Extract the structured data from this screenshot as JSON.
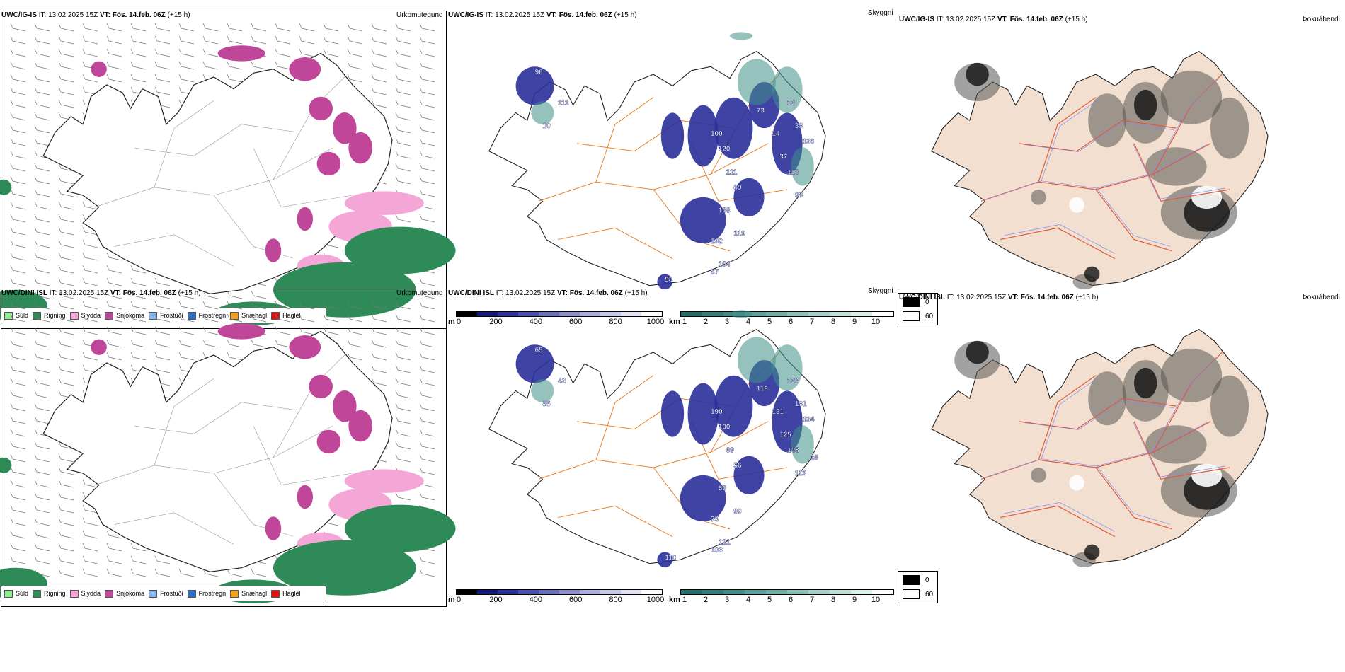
{
  "rows": [
    {
      "model": "UWC/IG-IS",
      "it_label": "IT: 13.02.2025 15Z",
      "vt_label": "VT: Fös. 14.feb. 06Z",
      "lead": "(+15 h)",
      "cloud_labels": [
        "96",
        "10",
        "100",
        "120",
        "111",
        "89",
        "73",
        "14",
        "13",
        "37",
        "33",
        "136",
        "118",
        "98",
        "138",
        "132",
        "119",
        "104",
        "87",
        "58",
        "111"
      ]
    },
    {
      "model": "UWC/DINI ISL",
      "it_label": "IT: 13.02.2025 15Z",
      "vt_label": "VT: Fös. 14.feb. 06Z",
      "lead": "(+15 h)",
      "cloud_labels": [
        "65",
        "85",
        "190",
        "100",
        "69",
        "56",
        "119",
        "151",
        "134",
        "125",
        "131",
        "134",
        "148",
        "113",
        "55",
        "75",
        "99",
        "121",
        "103",
        "110",
        "42",
        "28"
      ]
    }
  ],
  "panel_titles": {
    "precip_type": "Úrkomutegund",
    "cloud": "Skyggni",
    "fog": "Þokuábendi"
  },
  "precip_legend": [
    {
      "label": "Súld",
      "color": "#90ee90"
    },
    {
      "label": "Rigning",
      "color": "#2e8b57"
    },
    {
      "label": "Slydda",
      "color": "#f4a6d7"
    },
    {
      "label": "Snjókoma",
      "color": "#c0469a"
    },
    {
      "label": "Frostúði",
      "color": "#87b7ec"
    },
    {
      "label": "Frostregn",
      "color": "#2f6fc0"
    },
    {
      "label": "Snæhagl",
      "color": "#f0a020"
    },
    {
      "label": "Haglél",
      "color": "#e01010"
    }
  ],
  "cloudbase_bar": {
    "unit": "m",
    "ticks": [
      "0",
      "200",
      "400",
      "600",
      "800",
      "1000"
    ],
    "colors": [
      "#000000",
      "#151a7a",
      "#2a2f9a",
      "#4a4fad",
      "#6b70bd",
      "#8b8fcc",
      "#a9acda",
      "#c6c8e7",
      "#e2e3f3",
      "#ffffff"
    ]
  },
  "visibility_bar": {
    "unit": "km",
    "ticks": [
      "1",
      "2",
      "3",
      "4",
      "5",
      "6",
      "7",
      "8",
      "9",
      "10"
    ],
    "colors": [
      "#1f6f6a",
      "#2e7f79",
      "#3f8f88",
      "#55a098",
      "#6eb0a8",
      "#88c0b8",
      "#a3d0c8",
      "#bfe0d8",
      "#dbefea",
      "#ffffff"
    ]
  },
  "fog_legend": [
    "0",
    "60"
  ],
  "colors": {
    "land_fog": "#f3dfcf",
    "roads_fog": "#e05a3a",
    "rivers_fog": "#7f8cf0",
    "roads_cloud": "#e8832a",
    "snow": "#c0469a",
    "rain": "#2e8b57",
    "sleet": "#f4a6d7",
    "cloud_base": "#2a2f9a",
    "vis": "#3f8f88"
  }
}
